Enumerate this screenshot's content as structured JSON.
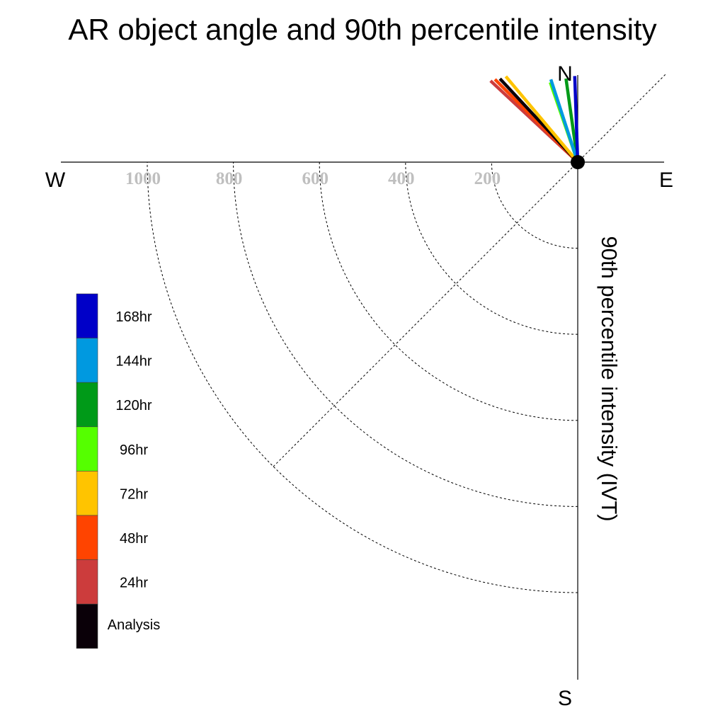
{
  "chart_data": {
    "type": "polar-vector",
    "title": "AR object angle and 90th percentile intensity",
    "axis_label": "90th percentile intensity (IVT)",
    "compass": {
      "north": "N",
      "south": "S",
      "east": "E",
      "west": "W"
    },
    "radial_ticks": [
      {
        "value": 200,
        "label": "200"
      },
      {
        "value": 400,
        "label": "400"
      },
      {
        "value": 600,
        "label": "600"
      },
      {
        "value": 800,
        "label": "800"
      },
      {
        "value": 1000,
        "label": "1000"
      }
    ],
    "radial_range": [
      0,
      1200
    ],
    "grid": true,
    "legend_position": "left",
    "legend": [
      {
        "label": "168hr",
        "color": "#0000c8"
      },
      {
        "label": "144hr",
        "color": "#0099e0"
      },
      {
        "label": "120hr",
        "color": "#009a18"
      },
      {
        "label": "96hr",
        "color": "#55ff00"
      },
      {
        "label": "72hr",
        "color": "#ffc400"
      },
      {
        "label": "48hr",
        "color": "#ff4400"
      },
      {
        "label": "24hr",
        "color": "#cc3c3c"
      },
      {
        "label": "Analysis",
        "color": "#0a0008"
      }
    ],
    "vectors": [
      {
        "series": "24hr",
        "color": "#cc3c3c",
        "direction_deg": 313,
        "intensity": 277
      },
      {
        "series": "48hr",
        "color": "#ff4400",
        "direction_deg": 315,
        "intensity": 272
      },
      {
        "series": "Analysis",
        "color": "#0a0008",
        "direction_deg": 317,
        "intensity": 265
      },
      {
        "series": "72hr",
        "color": "#ffc400",
        "direction_deg": 320,
        "intensity": 260
      },
      {
        "series": "96hr",
        "color": "#55ff00",
        "direction_deg": 341,
        "intensity": 196
      },
      {
        "series": "120hr",
        "color": "#009a18",
        "direction_deg": 352,
        "intensity": 196
      },
      {
        "series": "144hr",
        "color": "#0099e0",
        "direction_deg": 342,
        "intensity": 202
      },
      {
        "series": "168hr",
        "color": "#0000c8",
        "direction_deg": 358,
        "intensity": 200
      }
    ]
  }
}
